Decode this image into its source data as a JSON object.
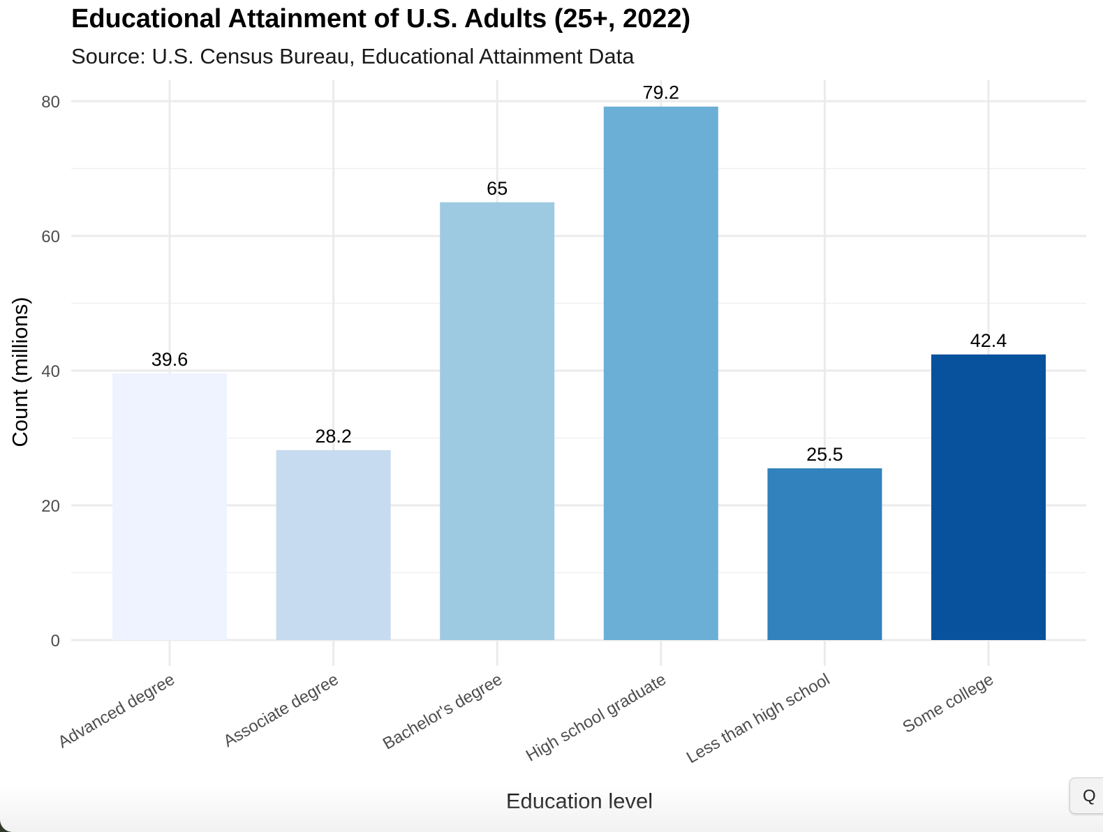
{
  "chart_data": {
    "type": "bar",
    "title": "Educational Attainment of U.S. Adults (25+, 2022)",
    "subtitle": "Source: U.S. Census Bureau, Educational Attainment Data",
    "xlabel": "Education level",
    "ylabel": "Count (millions)",
    "categories": [
      "Advanced degree",
      "Associate degree",
      "Bachelor's degree",
      "High school graduate",
      "Less than high school",
      "Some college"
    ],
    "values": [
      39.6,
      28.2,
      65,
      79.2,
      25.5,
      42.4
    ],
    "value_labels": [
      "39.6",
      "28.2",
      "65",
      "79.2",
      "25.5",
      "42.4"
    ],
    "yticks": [
      0,
      20,
      40,
      60,
      80
    ],
    "ylim": [
      0,
      80
    ],
    "grid": true,
    "legend": "none",
    "colors": [
      "#eff3ff",
      "#c6dbef",
      "#9ecae1",
      "#6baed6",
      "#3182bd",
      "#08519c"
    ]
  },
  "ui": {
    "corner_button_label": "Q"
  }
}
